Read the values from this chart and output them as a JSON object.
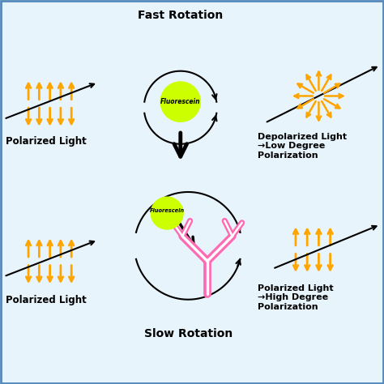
{
  "bg_color": "#e8f4fc",
  "border_color": "#5588bb",
  "orange": "#FFA500",
  "pink": "#FF69B4",
  "yellow_green": "#ccff00",
  "black": "#000000",
  "title_top": "Fast Rotation",
  "title_bottom": "Slow Rotation",
  "label_tl": "Polarized Light",
  "label_bl": "Polarized Light",
  "label_tr": "Depolarized Light\n→Low Degree\nPolarization",
  "label_br": "Polarized Light\n→High Degree\nPolarization",
  "fluor_label": "Fluorescein"
}
